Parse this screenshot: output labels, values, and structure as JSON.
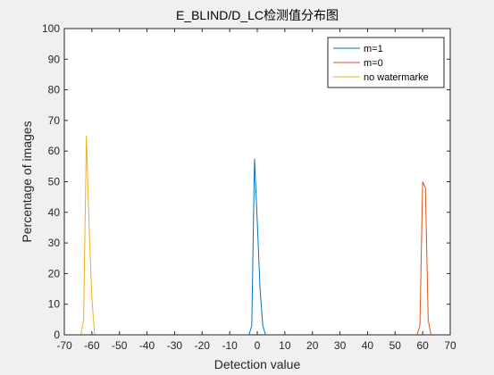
{
  "chart_data": {
    "type": "line",
    "title": "E_BLIND/D_LC检测值分布图",
    "xlabel": "Detection value",
    "ylabel": "Percentage of images",
    "xlim": [
      -70,
      70
    ],
    "ylim": [
      0,
      100
    ],
    "xticks": [
      -70,
      -60,
      -50,
      -40,
      -30,
      -20,
      -10,
      0,
      10,
      20,
      30,
      40,
      50,
      60,
      70
    ],
    "yticks": [
      0,
      10,
      20,
      30,
      40,
      50,
      60,
      70,
      80,
      90,
      100
    ],
    "grid": false,
    "legend_position": "top-right",
    "series": [
      {
        "name": "m=1",
        "color": "#0072BD",
        "points": [
          [
            -70,
            0
          ],
          [
            -3,
            0
          ],
          [
            -2,
            3
          ],
          [
            -1,
            57.5
          ],
          [
            0,
            37
          ],
          [
            1,
            15
          ],
          [
            2,
            3
          ],
          [
            3,
            0
          ],
          [
            70,
            0
          ]
        ]
      },
      {
        "name": "m=0",
        "color": "#D95319",
        "points": [
          [
            -70,
            0
          ],
          [
            58,
            0
          ],
          [
            59,
            3
          ],
          [
            60,
            50
          ],
          [
            61,
            48
          ],
          [
            62,
            5
          ],
          [
            63,
            0
          ],
          [
            70,
            0
          ]
        ]
      },
      {
        "name": "no watermarke",
        "color": "#EDB120",
        "points": [
          [
            -70,
            0
          ],
          [
            -64,
            0
          ],
          [
            -63,
            5
          ],
          [
            -62,
            65
          ],
          [
            -61,
            35
          ],
          [
            -60,
            12
          ],
          [
            -59,
            0
          ],
          [
            70,
            0
          ]
        ]
      }
    ]
  }
}
